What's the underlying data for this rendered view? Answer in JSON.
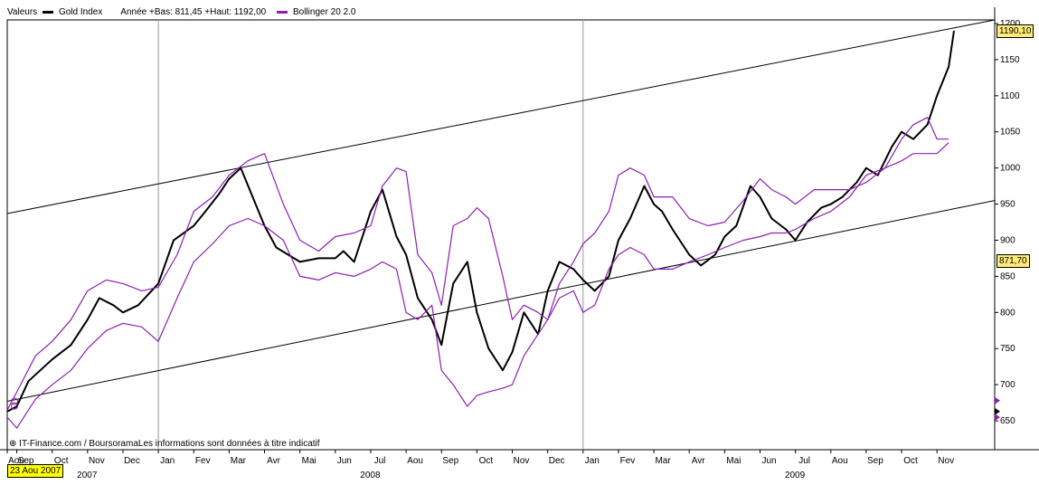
{
  "legend": {
    "label": "Valeurs",
    "series_label": "Gold Index",
    "range_text": "Année +Bas: 811,45 +Haut: 1192,00",
    "indicator_label": "Bollinger 20 2.0"
  },
  "footer": {
    "source_text": "IT-Finance.com / BoursoramaLes informations sont données à titre indicatif",
    "start_date": "23 Aou 2007"
  },
  "badges": {
    "last_price": "1190,10",
    "mid_price": "871,70"
  },
  "colors": {
    "price": "#000000",
    "bollinger": "#8b1fb0",
    "channel": "#000000",
    "badge": "#ffeb7a",
    "date_badge": "#ffff00",
    "marker": "#8b1fb0"
  },
  "chart_data": {
    "type": "line",
    "x_unit": "month",
    "x_start": "2007-08-23",
    "x_end": "2009-11-23",
    "ylim": [
      610,
      1205
    ],
    "y_ticks": [
      650,
      700,
      750,
      800,
      850,
      900,
      950,
      1000,
      1050,
      1100,
      1150,
      1200
    ],
    "month_labels": [
      "Aou",
      "Sep",
      "Oct",
      "Nov",
      "Dec",
      "Jan",
      "Fev",
      "Mar",
      "Avr",
      "Mai",
      "Jun",
      "Jul",
      "Aou",
      "Sep",
      "Oct",
      "Nov",
      "Dec",
      "Jan",
      "Fev",
      "Mar",
      "Avr",
      "Mai",
      "Jun",
      "Jul",
      "Aou",
      "Sep",
      "Oct",
      "Nov"
    ],
    "month_positions": [
      0.0,
      0.27,
      1.27,
      2.27,
      3.27,
      4.27,
      5.27,
      6.27,
      7.27,
      8.27,
      9.27,
      10.27,
      11.27,
      12.27,
      13.27,
      14.27,
      15.27,
      16.27,
      17.27,
      18.27,
      19.27,
      20.27,
      21.27,
      22.27,
      23.27,
      24.27,
      25.27,
      26.27
    ],
    "year_labels": [
      {
        "text": "2007",
        "x": 2.0
      },
      {
        "text": "2008",
        "x": 10.0
      },
      {
        "text": "2009",
        "x": 22.0
      }
    ],
    "year_separators": [
      4.27,
      16.27
    ],
    "series": [
      {
        "name": "Gold Index",
        "x": [
          0,
          0.27,
          0.6,
          1.27,
          1.8,
          2.27,
          2.6,
          3.0,
          3.27,
          3.7,
          4.27,
          4.7,
          5.27,
          5.6,
          6.0,
          6.27,
          6.6,
          7.27,
          7.6,
          8.27,
          8.8,
          9.27,
          9.5,
          9.8,
          10.27,
          10.6,
          11.0,
          11.27,
          11.6,
          12.0,
          12.27,
          12.6,
          13.0,
          13.27,
          13.6,
          14.0,
          14.27,
          14.6,
          15.0,
          15.27,
          15.6,
          16.0,
          16.27,
          16.6,
          17.0,
          17.27,
          17.6,
          18.0,
          18.27,
          18.5,
          18.8,
          19.27,
          19.6,
          20.0,
          20.27,
          20.6,
          21.0,
          21.27,
          21.6,
          22.0,
          22.27,
          22.6,
          23.0,
          23.27,
          23.6,
          24.0,
          24.27,
          24.6,
          25.0,
          25.27,
          25.6,
          26.0,
          26.27,
          26.6,
          26.75
        ],
        "values": [
          663,
          670,
          705,
          735,
          755,
          790,
          820,
          810,
          800,
          810,
          840,
          900,
          920,
          940,
          965,
          985,
          1000,
          920,
          890,
          870,
          875,
          875,
          885,
          870,
          940,
          970,
          905,
          880,
          820,
          790,
          755,
          840,
          870,
          800,
          750,
          720,
          745,
          800,
          770,
          830,
          870,
          860,
          845,
          830,
          850,
          900,
          930,
          975,
          950,
          940,
          915,
          880,
          865,
          880,
          905,
          920,
          975,
          960,
          930,
          915,
          900,
          925,
          945,
          950,
          960,
          980,
          1000,
          990,
          1030,
          1050,
          1040,
          1060,
          1100,
          1140,
          1190
        ]
      },
      {
        "name": "Bollinger 20 2.0",
        "x": [
          0,
          0.27,
          0.8,
          1.27,
          1.8,
          2.27,
          2.8,
          3.27,
          3.8,
          4.27,
          4.8,
          5.27,
          5.8,
          6.27,
          6.8,
          7.27,
          7.8,
          8.27,
          8.8,
          9.27,
          9.8,
          10.27,
          10.6,
          11.0,
          11.27,
          11.6,
          12.0,
          12.27,
          12.6,
          13.0,
          13.27,
          13.6,
          14.0,
          14.27,
          14.6,
          15.0,
          15.27,
          15.6,
          16.0,
          16.27,
          16.6,
          17.0,
          17.27,
          17.6,
          18.0,
          18.27,
          18.8,
          19.27,
          19.8,
          20.27,
          20.8,
          21.27,
          21.6,
          22.0,
          22.27,
          22.8,
          23.27,
          23.8,
          24.27,
          24.8,
          25.27,
          25.6,
          26.0,
          26.27,
          26.6
        ],
        "values": [
          665,
          690,
          740,
          760,
          790,
          830,
          845,
          840,
          830,
          835,
          880,
          940,
          960,
          990,
          1010,
          1020,
          950,
          900,
          885,
          905,
          910,
          920,
          975,
          1000,
          995,
          880,
          855,
          810,
          920,
          930,
          945,
          930,
          850,
          790,
          810,
          800,
          790,
          840,
          870,
          895,
          910,
          940,
          990,
          1000,
          990,
          960,
          960,
          930,
          920,
          925,
          955,
          985,
          970,
          960,
          950,
          970,
          970,
          970,
          980,
          1000,
          1040,
          1060,
          1070,
          1040,
          1040
        ]
      },
      {
        "name": "Bollinger 20 2.0 (lower)",
        "x": [
          0,
          0.27,
          0.8,
          1.27,
          1.8,
          2.27,
          2.8,
          3.27,
          3.8,
          4.27,
          4.8,
          5.27,
          5.8,
          6.27,
          6.8,
          7.27,
          7.8,
          8.27,
          8.8,
          9.27,
          9.8,
          10.27,
          10.6,
          11.0,
          11.27,
          11.6,
          12.0,
          12.27,
          12.6,
          13.0,
          13.27,
          13.6,
          14.0,
          14.27,
          14.6,
          15.0,
          15.27,
          15.6,
          16.0,
          16.27,
          16.6,
          17.0,
          17.27,
          17.6,
          18.0,
          18.27,
          18.8,
          19.27,
          19.8,
          20.27,
          20.8,
          21.27,
          21.6,
          22.0,
          22.27,
          22.8,
          23.27,
          23.8,
          24.27,
          24.8,
          25.27,
          25.6,
          26.0,
          26.27,
          26.6
        ],
        "values": [
          655,
          640,
          680,
          700,
          720,
          750,
          775,
          785,
          780,
          760,
          820,
          870,
          895,
          920,
          930,
          920,
          900,
          850,
          845,
          855,
          850,
          860,
          870,
          860,
          800,
          790,
          810,
          720,
          700,
          670,
          685,
          690,
          695,
          700,
          740,
          770,
          790,
          820,
          830,
          800,
          810,
          860,
          880,
          890,
          880,
          860,
          860,
          870,
          880,
          890,
          900,
          905,
          910,
          910,
          915,
          930,
          940,
          960,
          990,
          1000,
          1010,
          1020,
          1020,
          1020,
          1035
        ]
      }
    ],
    "channel_lines": [
      {
        "x": [
          0,
          27.9
        ],
        "values": [
          937,
          1205
        ]
      },
      {
        "x": [
          0,
          27.9
        ],
        "values": [
          677,
          955
        ]
      }
    ]
  }
}
